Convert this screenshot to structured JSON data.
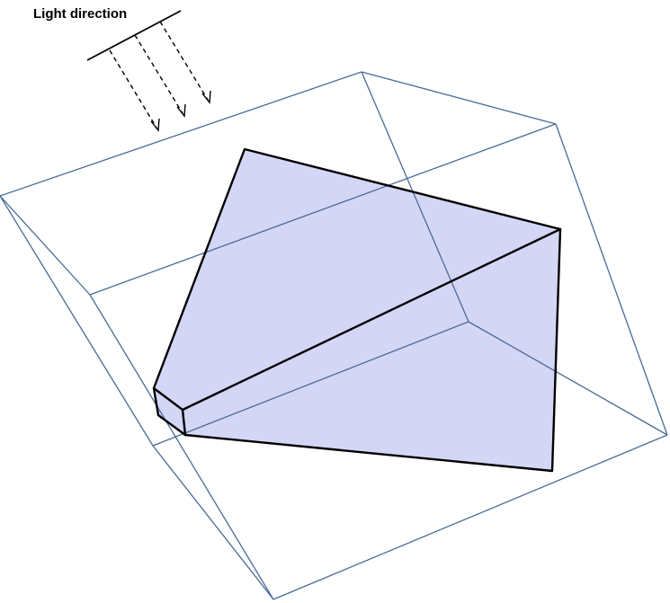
{
  "labels": {
    "light_direction": "Light direction"
  },
  "colors": {
    "cube_edge": "#4a6a96",
    "solid_face": "#d4d6f6",
    "solid_edge": "#000000"
  }
}
